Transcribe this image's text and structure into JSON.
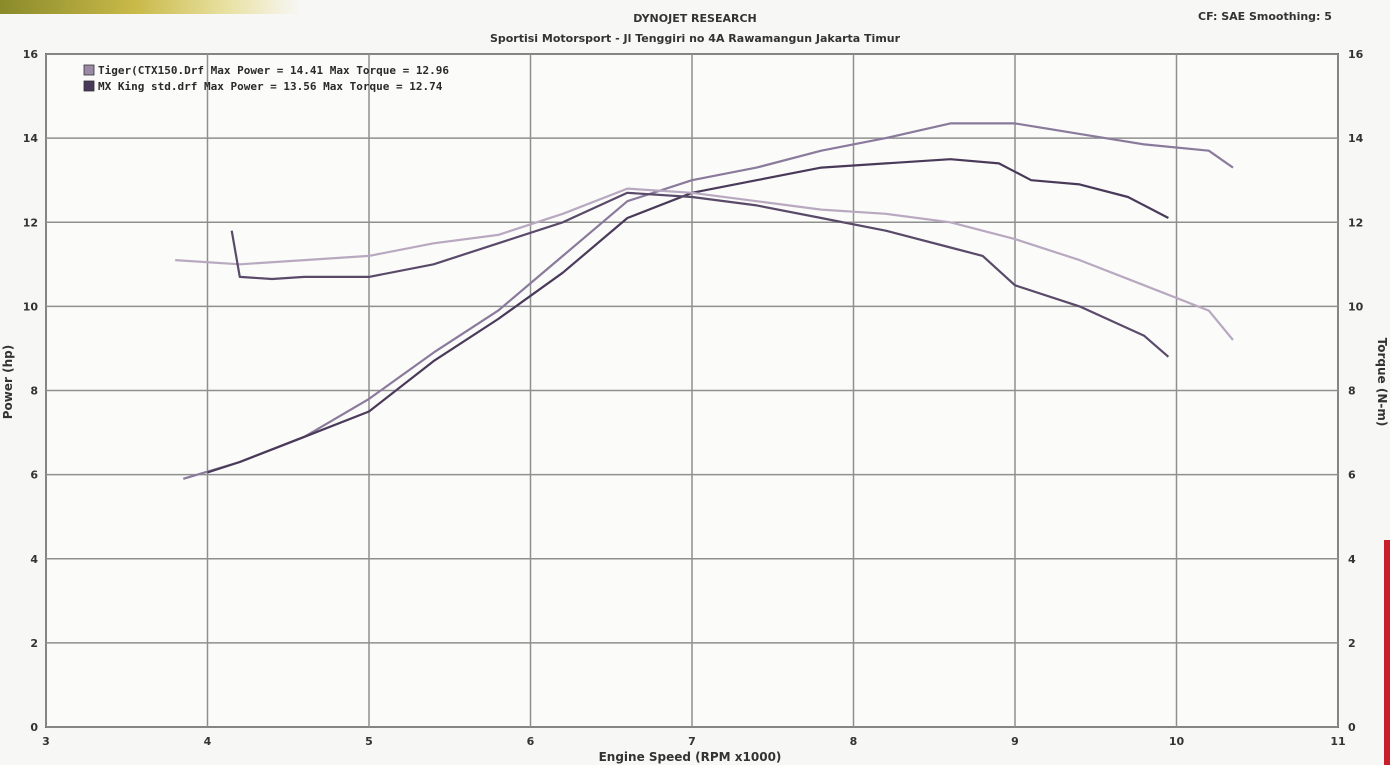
{
  "header": {
    "title": "DYNOJET RESEARCH",
    "subtitle": "Sportisi Motorsport - Jl Tenggiri no 4A Rawamangun Jakarta Timur",
    "correction": "CF: SAE   Smoothing: 5"
  },
  "chart_data": {
    "type": "line",
    "xlabel": "Engine Speed (RPM x1000)",
    "ylabel_left": "Power (hp)",
    "ylabel_right": "Torque (N-m)",
    "xlim": [
      3,
      11
    ],
    "ylim_left": [
      0,
      16
    ],
    "ylim_right": [
      0,
      16
    ],
    "x_ticks": [
      "3",
      "4",
      "5",
      "6",
      "7",
      "8",
      "9",
      "10",
      "11"
    ],
    "y_ticks_left": [
      "0",
      "2",
      "4",
      "6",
      "8",
      "10",
      "12",
      "14",
      "16"
    ],
    "y_ticks_right": [
      "0",
      "2",
      "4",
      "6",
      "8",
      "10",
      "12",
      "14",
      "16"
    ],
    "grid": true,
    "legend_position": "top-left",
    "legend": [
      {
        "text": "Tiger(CTX150.Drf Max Power = 14.41    Max Torque = 12.96",
        "color": "#9a8aa8"
      },
      {
        "text": "MX King std.drf Max Power = 13.56    Max Torque = 12.74",
        "color": "#4a3a5a"
      }
    ],
    "series": [
      {
        "name": "Power (hp) Tiger(CTX150.Drf",
        "color": "#8a7a9c",
        "x": [
          3.85,
          4.2,
          4.6,
          5.0,
          5.4,
          5.8,
          6.2,
          6.6,
          7.0,
          7.4,
          7.8,
          8.2,
          8.6,
          9.0,
          9.4,
          9.8,
          10.2,
          10.35
        ],
        "y": [
          5.9,
          6.3,
          6.9,
          7.8,
          8.9,
          9.9,
          11.2,
          12.5,
          13.0,
          13.3,
          13.7,
          14.0,
          14.35,
          14.35,
          14.1,
          13.85,
          13.7,
          13.3
        ]
      },
      {
        "name": "Power (hp) MX King std.drf",
        "color": "#4a3a5a",
        "x": [
          4.0,
          4.2,
          4.6,
          5.0,
          5.4,
          5.8,
          6.2,
          6.6,
          7.0,
          7.4,
          7.8,
          8.2,
          8.6,
          8.9,
          9.1,
          9.4,
          9.7,
          9.95
        ],
        "y": [
          6.05,
          6.3,
          6.9,
          7.5,
          8.7,
          9.7,
          10.8,
          12.1,
          12.7,
          13.0,
          13.3,
          13.4,
          13.5,
          13.4,
          13.0,
          12.9,
          12.6,
          12.1
        ]
      },
      {
        "name": "Torque (N-m) Tiger(CTX150.Drf",
        "color": "#b8a8c0",
        "x": [
          3.8,
          4.2,
          4.6,
          5.0,
          5.4,
          5.8,
          6.2,
          6.6,
          7.0,
          7.4,
          7.8,
          8.2,
          8.6,
          9.0,
          9.4,
          9.8,
          10.2,
          10.35
        ],
        "y": [
          11.1,
          11.0,
          11.1,
          11.2,
          11.5,
          11.7,
          12.2,
          12.8,
          12.7,
          12.5,
          12.3,
          12.2,
          12.0,
          11.6,
          11.1,
          10.5,
          9.9,
          9.2
        ]
      },
      {
        "name": "Torque (N-m) MX King std.drf",
        "color": "#5a4a6a",
        "x": [
          4.15,
          4.2,
          4.4,
          4.6,
          5.0,
          5.4,
          5.8,
          6.2,
          6.6,
          7.0,
          7.4,
          7.8,
          8.2,
          8.6,
          8.8,
          9.0,
          9.4,
          9.8,
          9.95
        ],
        "y": [
          11.8,
          10.7,
          10.65,
          10.7,
          10.7,
          11.0,
          11.5,
          12.0,
          12.7,
          12.6,
          12.4,
          12.1,
          11.8,
          11.4,
          11.2,
          10.5,
          10.0,
          9.3,
          8.8
        ]
      }
    ]
  }
}
